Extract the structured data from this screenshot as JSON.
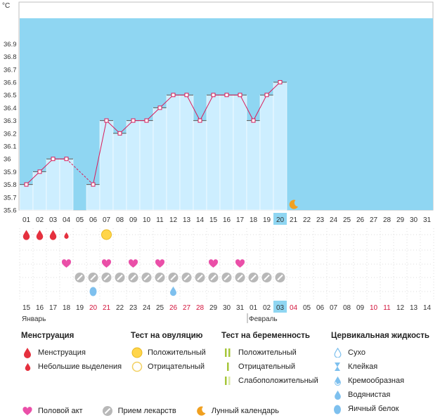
{
  "chart_data": {
    "type": "line",
    "unit": "°C",
    "ylim": [
      35.6,
      36.95
    ],
    "y_ticks": [
      "35.6",
      "35.7",
      "35.8",
      "35.9",
      "36",
      "36.1",
      "36.2",
      "36.3",
      "36.4",
      "36.5",
      "36.6",
      "36.7",
      "36.8",
      "36.9"
    ],
    "day_labels": [
      "01",
      "02",
      "03",
      "04",
      "05",
      "06",
      "07",
      "08",
      "09",
      "10",
      "11",
      "12",
      "13",
      "14",
      "15",
      "16",
      "17",
      "18",
      "19",
      "20",
      "21",
      "22",
      "23",
      "24",
      "25",
      "26",
      "27",
      "28",
      "29",
      "30",
      "31"
    ],
    "current_cycle_day": "20",
    "temperatures": [
      35.8,
      35.9,
      36.0,
      36.0,
      null,
      35.8,
      36.3,
      36.2,
      36.3,
      36.3,
      36.4,
      36.5,
      36.5,
      36.3,
      36.5,
      36.5,
      36.5,
      36.3,
      36.5,
      36.6
    ],
    "dates": [
      "15",
      "16",
      "17",
      "18",
      "19",
      "20",
      "21",
      "22",
      "23",
      "24",
      "25",
      "26",
      "27",
      "28",
      "29",
      "30",
      "31",
      "01",
      "02",
      "03",
      "04",
      "05",
      "06",
      "07",
      "08",
      "09",
      "10",
      "11",
      "12",
      "13",
      "14"
    ],
    "date_colors": [
      "normal",
      "normal",
      "normal",
      "normal",
      "normal",
      "red",
      "red",
      "normal",
      "normal",
      "normal",
      "normal",
      "red",
      "red",
      "red",
      "normal",
      "normal",
      "normal",
      "normal",
      "normal",
      "highlight",
      "red",
      "normal",
      "normal",
      "normal",
      "normal",
      "normal",
      "red",
      "red",
      "normal",
      "normal",
      "normal"
    ],
    "month_labels": [
      {
        "day_index": 0,
        "label": "Январь"
      },
      {
        "day_index": 17,
        "label": "Февраль"
      }
    ],
    "markers": {
      "menstruation": [
        0,
        1,
        2
      ],
      "light_discharge": [
        3
      ],
      "ovulation_positive": [
        6
      ],
      "intercourse": [
        3,
        6,
        8,
        10,
        14,
        16
      ],
      "medication": [
        4,
        5,
        6,
        7,
        8,
        9,
        10,
        11,
        12,
        13,
        14,
        15,
        16,
        17,
        18,
        19
      ],
      "egg_white_fluid": [
        5,
        11
      ],
      "lunar": [
        20
      ]
    }
  },
  "legend": {
    "menstruation": {
      "title": "Менструация",
      "items": [
        "Менструация",
        "Небольшие выделения"
      ]
    },
    "ovulation": {
      "title": "Тест на овуляцию",
      "items": [
        "Положительный",
        "Отрицательный"
      ]
    },
    "pregnancy": {
      "title": "Тест на беременность",
      "items": [
        "Положительный",
        "Отрицательный",
        "Слабоположительный"
      ]
    },
    "cervical": {
      "title": "Цервикальная жидкость",
      "items": [
        "Сухо",
        "Клейкая",
        "Кремообразная",
        "Водянистая",
        "Яичный белок"
      ]
    },
    "bottom": [
      "Половой акт",
      "Прием лекарств",
      "Лунный календарь"
    ]
  },
  "colors": {
    "sky": "#8fd6f2",
    "column": "#cdeeff",
    "line": "#d81b5a",
    "drop": "#e5303e",
    "heart": "#ea4fa8",
    "ovulation": "#ffd54a",
    "moon": "#f0a020",
    "pill": "#b8b8b8",
    "fluid": "#7ec0ee",
    "preg": "#a6c63a",
    "red_text": "#d2143c"
  }
}
